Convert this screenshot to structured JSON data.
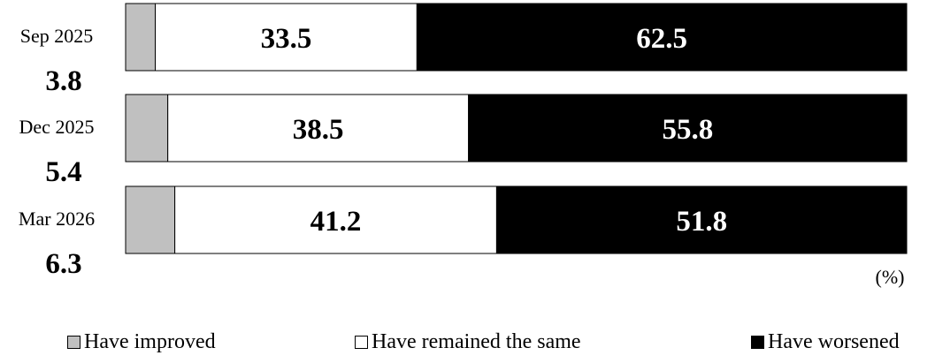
{
  "chart_data": {
    "type": "bar",
    "orientation": "horizontal",
    "stacked": true,
    "xlim": [
      0,
      100
    ],
    "unit": "(%)",
    "categories": [
      "Sep 2025",
      "Dec 2025",
      "Mar 2026"
    ],
    "category_values": [
      "3.8",
      "5.4",
      "6.3"
    ],
    "series": [
      {
        "name": "Have improved",
        "color": "#c0c0c0",
        "values": [
          3.8,
          5.4,
          6.3
        ],
        "labels": [
          "",
          "",
          ""
        ]
      },
      {
        "name": "Have remained the same",
        "color": "#ffffff",
        "values": [
          33.5,
          38.5,
          41.2
        ],
        "labels": [
          "33.5",
          "38.5",
          "41.2"
        ]
      },
      {
        "name": "Have worsened",
        "color": "#000000",
        "values": [
          62.5,
          55.8,
          51.8
        ],
        "labels": [
          "62.5",
          "55.8",
          "51.8"
        ]
      }
    ],
    "legend_position": "bottom"
  }
}
